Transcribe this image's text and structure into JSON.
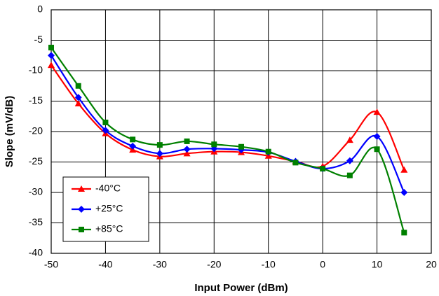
{
  "chart_data": {
    "type": "line",
    "xlabel": "Input Power (dBm)",
    "ylabel": "Slope (mV/dB)",
    "x": [
      -50,
      -45,
      -40,
      -35,
      -30,
      -25,
      -20,
      -15,
      -10,
      -5,
      0,
      5,
      10,
      15
    ],
    "series": [
      {
        "name": "-40°C",
        "color": "#ff0000",
        "marker": "triangle",
        "values": [
          -9.1,
          -15.4,
          -20.3,
          -23.0,
          -24.1,
          -23.6,
          -23.3,
          -23.4,
          -24.0,
          -24.9,
          -25.7,
          -21.4,
          -16.8,
          -26.3
        ]
      },
      {
        "name": "+25°C",
        "color": "#0000ff",
        "marker": "diamond",
        "values": [
          -7.5,
          -14.4,
          -19.8,
          -22.4,
          -23.6,
          -22.9,
          -22.8,
          -23.0,
          -23.4,
          -24.9,
          -26.1,
          -24.8,
          -20.8,
          -30.0
        ]
      },
      {
        "name": "+85°C",
        "color": "#008000",
        "marker": "square",
        "values": [
          -6.2,
          -12.5,
          -18.5,
          -21.3,
          -22.2,
          -21.6,
          -22.1,
          -22.5,
          -23.3,
          -25.1,
          -26.1,
          -27.2,
          -22.9,
          -36.6
        ]
      }
    ],
    "xlim": [
      -50,
      20
    ],
    "xticks": [
      -50,
      -40,
      -30,
      -20,
      -10,
      0,
      10,
      20
    ],
    "ylim": [
      -40,
      0
    ],
    "yticks": [
      -40,
      -35,
      -30,
      -25,
      -20,
      -15,
      -10,
      -5,
      0
    ],
    "grid": true,
    "smooth": true,
    "legend": "lower left"
  }
}
